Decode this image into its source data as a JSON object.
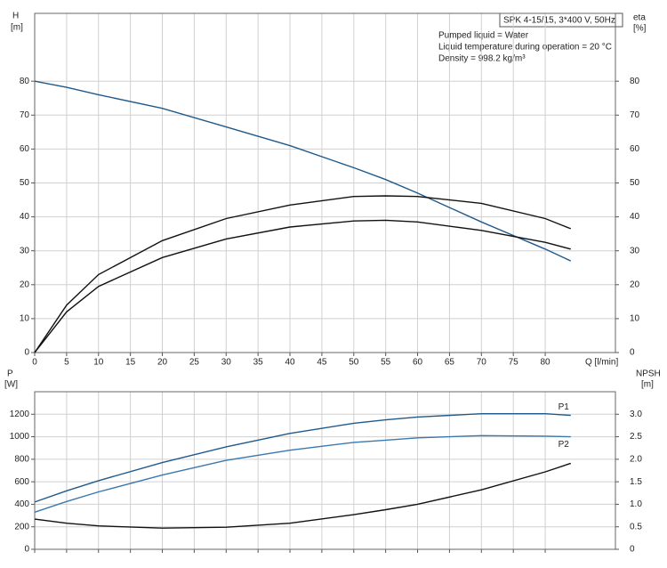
{
  "chart_data": [
    {
      "type": "line",
      "title": "SPK 4-15/15, 3*400 V, 50Hz",
      "annotations": [
        "Pumped liquid = Water",
        "Liquid temperature during operation = 20 °C",
        "Density = 998.2 kg/m³"
      ],
      "ylabel": "H",
      "yunit": "[m]",
      "y2label": "eta",
      "y2unit": "[%]",
      "xlabel": "Q [l/min]",
      "xlim": [
        0,
        91
      ],
      "xticks": [
        0,
        5,
        10,
        15,
        20,
        25,
        30,
        35,
        40,
        45,
        50,
        55,
        60,
        65,
        70,
        75,
        80
      ],
      "ylim": [
        0,
        100
      ],
      "yticks": [
        0,
        10,
        20,
        30,
        40,
        50,
        60,
        70,
        80
      ],
      "y2lim": [
        0,
        100
      ],
      "y2ticks": [
        0,
        10,
        20,
        30,
        40,
        50,
        60,
        70,
        80
      ],
      "grid": true,
      "x": [
        0,
        5,
        10,
        20,
        30,
        40,
        50,
        55,
        60,
        70,
        80,
        84
      ],
      "series": [
        {
          "color": "#1f5a8c",
          "values": [
            80,
            78.2,
            76,
            72,
            66.5,
            61,
            54.5,
            51,
            47,
            38.5,
            30.5,
            27
          ]
        },
        {
          "color": "#111111",
          "axis": "y2",
          "values": [
            0,
            14,
            23,
            33,
            39.5,
            43.5,
            46,
            46.2,
            46,
            44,
            39.5,
            36.5
          ]
        },
        {
          "color": "#111111",
          "axis": "y2",
          "values": [
            0,
            12,
            19.5,
            28,
            33.5,
            37,
            38.8,
            39,
            38.5,
            36,
            32.5,
            30.5
          ]
        }
      ]
    },
    {
      "type": "line",
      "ylabel": "P",
      "yunit": "[W]",
      "y2label": "NPSH",
      "y2unit": "[m]",
      "xlim": [
        0,
        91
      ],
      "xticks": [
        0,
        5,
        10,
        15,
        20,
        25,
        30,
        35,
        40,
        45,
        50,
        55,
        60,
        65,
        70,
        75,
        80
      ],
      "ylim": [
        0,
        1400
      ],
      "yticks": [
        0,
        200,
        400,
        600,
        800,
        1000,
        1200
      ],
      "y2lim": [
        0,
        3.5
      ],
      "y2ticks": [
        0,
        0.5,
        {
          "value": 1,
          "label": "1.0"
        },
        1.5,
        {
          "value": 2,
          "label": "2.0"
        },
        2.5,
        {
          "value": 3,
          "label": "3.0"
        }
      ],
      "grid": true,
      "x": [
        0,
        5,
        10,
        20,
        30,
        40,
        50,
        55,
        60,
        70,
        80,
        84
      ],
      "series": [
        {
          "name": "P1",
          "color": "#1f5a8c",
          "values": [
            420,
            520,
            610,
            770,
            910,
            1030,
            1120,
            1150,
            1175,
            1205,
            1205,
            1190
          ]
        },
        {
          "name": "P2",
          "color": "#3a78b0",
          "values": [
            330,
            425,
            510,
            660,
            790,
            880,
            950,
            970,
            990,
            1010,
            1005,
            1000
          ]
        },
        {
          "color": "#111111",
          "axis": "y2",
          "values": [
            0.67,
            0.58,
            0.52,
            0.47,
            0.49,
            0.58,
            0.77,
            0.88,
            1.0,
            1.32,
            1.72,
            1.91
          ]
        }
      ]
    }
  ]
}
